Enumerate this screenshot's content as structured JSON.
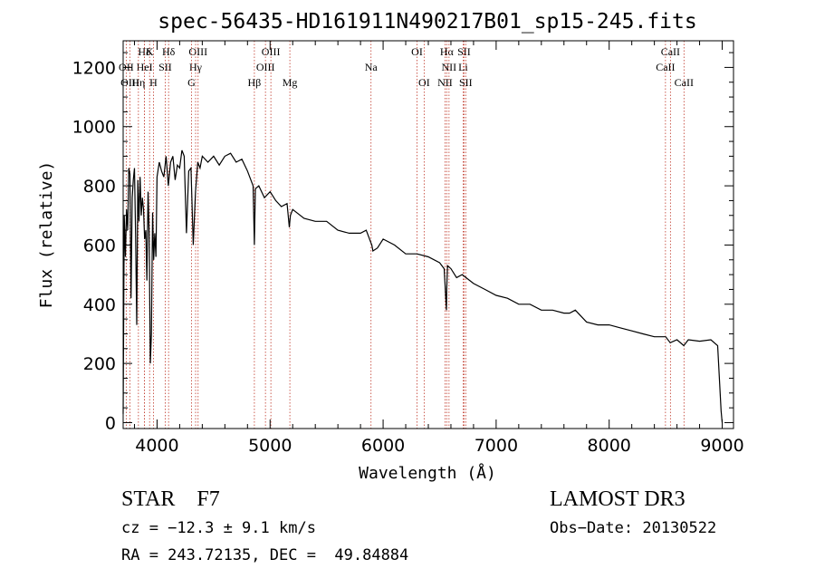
{
  "chart_data": {
    "type": "line",
    "title": "spec-56435-HD161911N490217B01_sp15-245.fits",
    "xlabel": "Wavelength (Å)",
    "ylabel": "Flux (relative)",
    "xlim": [
      3700,
      9100
    ],
    "ylim": [
      -20,
      1290
    ],
    "xticks": [
      4000,
      5000,
      6000,
      7000,
      8000,
      9000
    ],
    "yticks": [
      0,
      200,
      400,
      600,
      800,
      1000,
      1200
    ],
    "series": [
      {
        "name": "flux",
        "x": [
          3700,
          3710,
          3720,
          3730,
          3740,
          3750,
          3760,
          3770,
          3780,
          3790,
          3800,
          3810,
          3820,
          3830,
          3840,
          3850,
          3860,
          3870,
          3880,
          3890,
          3900,
          3910,
          3920,
          3930,
          3940,
          3950,
          3960,
          3970,
          3980,
          3990,
          4000,
          4020,
          4040,
          4060,
          4080,
          4100,
          4120,
          4140,
          4160,
          4180,
          4200,
          4220,
          4240,
          4260,
          4280,
          4300,
          4320,
          4340,
          4360,
          4380,
          4400,
          4450,
          4500,
          4550,
          4600,
          4650,
          4700,
          4750,
          4800,
          4830,
          4850,
          4861,
          4870,
          4900,
          4950,
          5000,
          5050,
          5100,
          5150,
          5170,
          5180,
          5200,
          5300,
          5400,
          5500,
          5600,
          5700,
          5800,
          5850,
          5880,
          5890,
          5900,
          5910,
          5950,
          6000,
          6100,
          6200,
          6300,
          6400,
          6500,
          6540,
          6560,
          6563,
          6570,
          6600,
          6650,
          6700,
          6800,
          6900,
          7000,
          7100,
          7200,
          7300,
          7400,
          7500,
          7600,
          7650,
          7700,
          7800,
          7900,
          8000,
          8100,
          8200,
          8300,
          8400,
          8500,
          8540,
          8600,
          8660,
          8700,
          8800,
          8900,
          8960,
          8990,
          9000
        ],
        "values": [
          30,
          700,
          560,
          720,
          650,
          860,
          840,
          420,
          760,
          820,
          860,
          640,
          330,
          820,
          680,
          830,
          700,
          760,
          720,
          620,
          650,
          480,
          780,
          640,
          200,
          300,
          710,
          550,
          640,
          560,
          830,
          880,
          850,
          830,
          900,
          800,
          880,
          900,
          820,
          870,
          860,
          920,
          900,
          640,
          850,
          860,
          600,
          780,
          880,
          860,
          900,
          880,
          900,
          870,
          900,
          910,
          880,
          890,
          850,
          820,
          800,
          600,
          790,
          800,
          760,
          780,
          750,
          730,
          740,
          660,
          700,
          720,
          690,
          680,
          680,
          650,
          640,
          640,
          650,
          620,
          610,
          600,
          580,
          590,
          620,
          600,
          570,
          570,
          560,
          540,
          520,
          380,
          450,
          530,
          520,
          490,
          500,
          470,
          450,
          430,
          420,
          400,
          400,
          380,
          380,
          370,
          370,
          380,
          340,
          330,
          330,
          320,
          310,
          300,
          290,
          290,
          270,
          280,
          260,
          280,
          275,
          280,
          260,
          40,
          0
        ]
      }
    ],
    "spectral_lines": [
      {
        "name": "Hδ",
        "x": 3889,
        "row": 1
      },
      {
        "name": "OII",
        "x": 3727,
        "row": 2
      },
      {
        "name": "OIII",
        "x": 3760,
        "row": 3
      },
      {
        "name": "K",
        "x": 3934,
        "row": 1
      },
      {
        "name": "HeI",
        "x": 3889,
        "row": 2
      },
      {
        "name": "Hη",
        "x": 3835,
        "row": 3
      },
      {
        "name": "Hδ",
        "x": 4102,
        "row": 1
      },
      {
        "name": "SII",
        "x": 4072,
        "row": 2
      },
      {
        "name": "H",
        "x": 3968,
        "row": 3
      },
      {
        "name": "OIII",
        "x": 4363,
        "row": 1
      },
      {
        "name": "Hγ",
        "x": 4341,
        "row": 2
      },
      {
        "name": "G",
        "x": 4305,
        "row": 3
      },
      {
        "name": "Hβ",
        "x": 4861,
        "row": 3
      },
      {
        "name": "OIII",
        "x": 5007,
        "row": 1
      },
      {
        "name": "OIII",
        "x": 4959,
        "row": 2
      },
      {
        "name": "Mg",
        "x": 5175,
        "row": 3
      },
      {
        "name": "Na",
        "x": 5893,
        "row": 2
      },
      {
        "name": "OI",
        "x": 6300,
        "row": 1
      },
      {
        "name": "OI",
        "x": 6363,
        "row": 3
      },
      {
        "name": "Hα",
        "x": 6563,
        "row": 1
      },
      {
        "name": "NII",
        "x": 6583,
        "row": 2
      },
      {
        "name": "NII",
        "x": 6548,
        "row": 3
      },
      {
        "name": "SII",
        "x": 6716,
        "row": 1
      },
      {
        "name": "Li",
        "x": 6708,
        "row": 2
      },
      {
        "name": "SII",
        "x": 6731,
        "row": 3
      },
      {
        "name": "CaII",
        "x": 8542,
        "row": 1
      },
      {
        "name": "CaII",
        "x": 8498,
        "row": 2
      },
      {
        "name": "CaII",
        "x": 8662,
        "row": 3
      }
    ]
  },
  "info": {
    "star_type": "STAR    F7",
    "survey": "LAMOST DR3",
    "cz": "cz = −12.3 ± 9.1 km/s",
    "obs_date": "Obs−Date: 20130522",
    "radec": "RA = 243.72135, DEC =  49.84884"
  }
}
